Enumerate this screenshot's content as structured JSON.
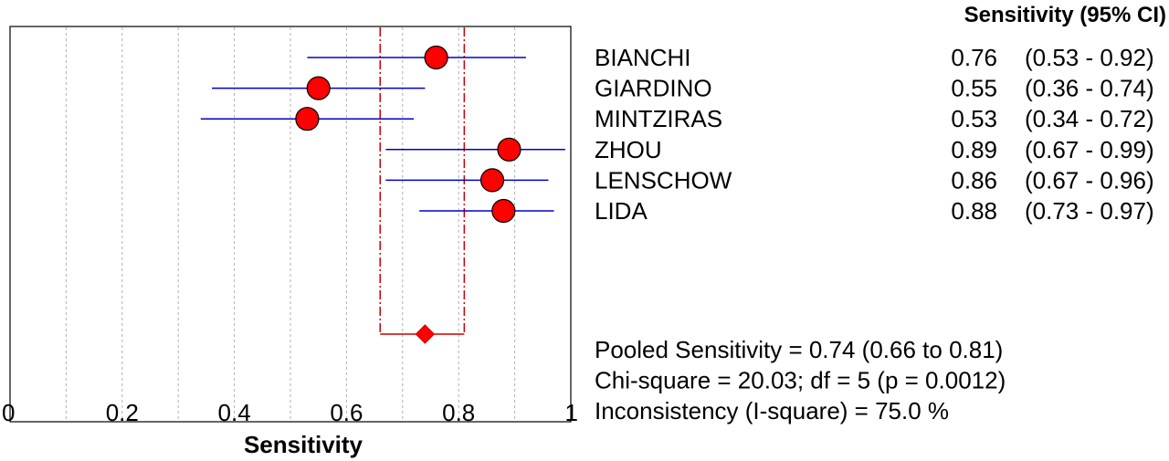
{
  "chart_data": {
    "type": "forest",
    "xlabel": "Sensitivity",
    "xlim": [
      0,
      1
    ],
    "xticks": [
      0,
      0.2,
      0.4,
      0.6,
      0.8,
      1
    ],
    "xtick_labels": [
      "0",
      "0.2",
      "0.4",
      "0.6",
      "0.8",
      "1"
    ],
    "column_header": "Sensitivity (95% CI)",
    "grid": true,
    "studies": [
      {
        "name": "BIANCHI",
        "estimate": 0.76,
        "lower": 0.53,
        "upper": 0.92,
        "value_label": "0.76",
        "ci_label": "(0.53 - 0.92)"
      },
      {
        "name": "GIARDINO",
        "estimate": 0.55,
        "lower": 0.36,
        "upper": 0.74,
        "value_label": "0.55",
        "ci_label": "(0.36 - 0.74)"
      },
      {
        "name": "MINTZIRAS",
        "estimate": 0.53,
        "lower": 0.34,
        "upper": 0.72,
        "value_label": "0.53",
        "ci_label": "(0.34 - 0.72)"
      },
      {
        "name": "ZHOU",
        "estimate": 0.89,
        "lower": 0.67,
        "upper": 0.99,
        "value_label": "0.89",
        "ci_label": "(0.67 - 0.99)"
      },
      {
        "name": "LENSCHOW",
        "estimate": 0.86,
        "lower": 0.67,
        "upper": 0.96,
        "value_label": "0.86",
        "ci_label": "(0.67 - 0.96)"
      },
      {
        "name": "LIDA",
        "estimate": 0.88,
        "lower": 0.73,
        "upper": 0.97,
        "value_label": "0.88",
        "ci_label": "(0.73 - 0.97)"
      }
    ],
    "pooled": {
      "estimate": 0.74,
      "lower": 0.66,
      "upper": 0.81
    },
    "stats": [
      "Pooled Sensitivity = 0.74 (0.66 to 0.81)",
      "Chi-square = 20.03; df =  5 (p = 0.0012)",
      "Inconsistency (I-square) = 75.0 %"
    ],
    "colors": {
      "ci_line": "#0000cc",
      "marker_fill": "#ff0000",
      "marker_stroke": "#000000",
      "pooled_line": "#cc0000",
      "grid": "#b0b0b0"
    }
  }
}
